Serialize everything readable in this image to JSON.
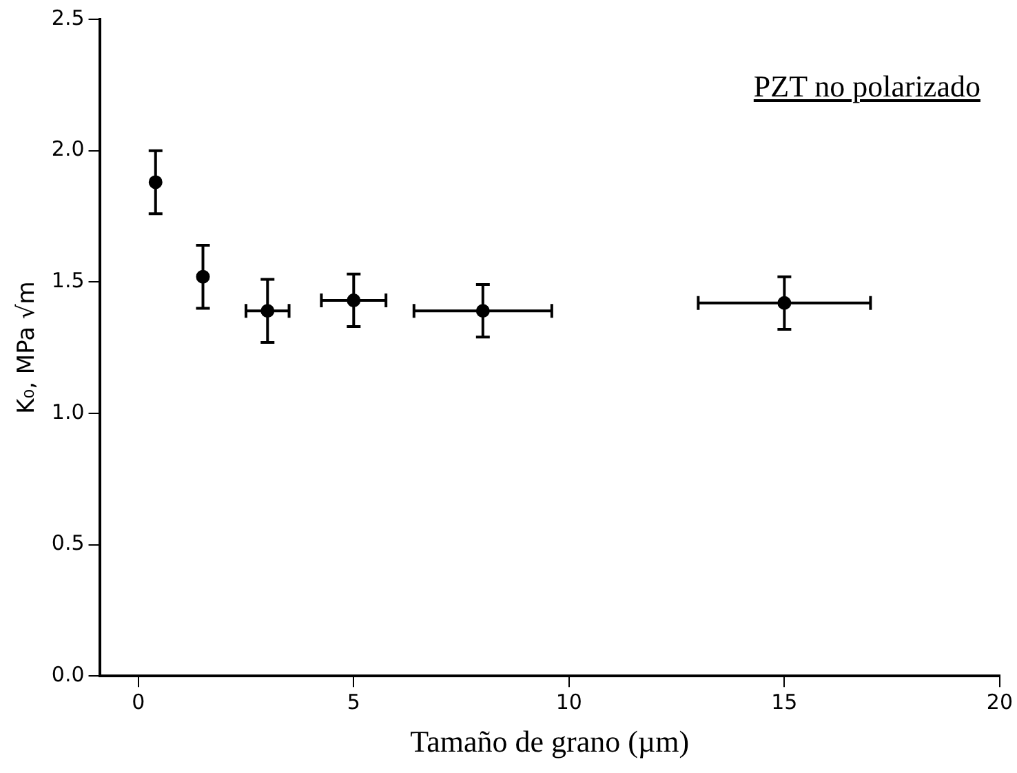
{
  "chart_data": {
    "type": "scatter",
    "xlabel": "Tamaño de grano (µm)",
    "ylabel": "K₀, MPa √m",
    "annotations": [
      "PZT no polarizado"
    ],
    "x": [
      0.4,
      1.5,
      3,
      5,
      8,
      15
    ],
    "series": [
      {
        "color": "#000000",
        "values": [
          1.88,
          1.52,
          1.39,
          1.43,
          1.39,
          1.42
        ],
        "errors": [
          0.12,
          0.12,
          0.12,
          0.1,
          0.1,
          0.1
        ],
        "xerrors": [
          null,
          null,
          0.5,
          0.75,
          1.6,
          2
        ]
      }
    ],
    "xlim": [
      -0.9,
      20
    ],
    "xticks": [
      0,
      5,
      10,
      15,
      20
    ],
    "ylim": [
      0,
      2.5
    ],
    "yticks": [
      {
        "value": 0,
        "label": "0.0"
      },
      {
        "value": 0.5,
        "label": "0.5"
      },
      {
        "value": 1,
        "label": "1.0"
      },
      {
        "value": 1.5,
        "label": "1.5"
      },
      {
        "value": 2,
        "label": "2.0"
      },
      {
        "value": 2.5,
        "label": "2.5"
      }
    ],
    "grid": false,
    "legend": false,
    "marker": "circle"
  }
}
